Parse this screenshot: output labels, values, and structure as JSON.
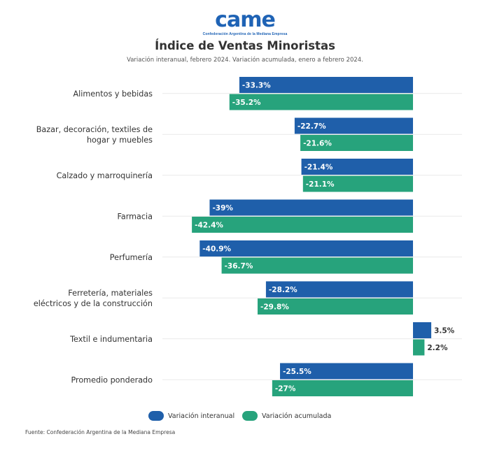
{
  "logo": {
    "text": "came",
    "tagline": "Confederación Argentina de la Mediana Empresa"
  },
  "header": {
    "title": "Índice de Ventas Minoristas",
    "subtitle": "Variación interanual, febrero 2024. Variación acumulada, enero a febrero 2024."
  },
  "colors": {
    "interanual": "#1f5faa",
    "acumulada": "#27a37c",
    "grid": "#e9e9e9",
    "label": "#333333"
  },
  "chart_data": {
    "type": "bar",
    "orientation": "horizontal",
    "title": "Índice de Ventas Minoristas",
    "subtitle": "Variación interanual, febrero 2024. Variación acumulada, enero a febrero 2024.",
    "categories": [
      [
        "Alimentos y bebidas"
      ],
      [
        "Bazar, decoración, textiles de",
        "hogar y muebles"
      ],
      [
        "Calzado y marroquinería"
      ],
      [
        "Farmacia"
      ],
      [
        "Perfumería"
      ],
      [
        "Ferretería, materiales",
        "eléctricos y de la construcción"
      ],
      [
        "Textil e indumentaria"
      ],
      [
        "Promedio ponderado"
      ]
    ],
    "series": [
      {
        "name": "Variación interanual",
        "values": [
          -33.3,
          -22.7,
          -21.4,
          -39,
          -40.9,
          -28.2,
          3.5,
          -25.5
        ],
        "labels": [
          "-33.3%",
          "-22.7%",
          "-21.4%",
          "-39%",
          "-40.9%",
          "-28.2%",
          "3.5%",
          "-25.5%"
        ]
      },
      {
        "name": "Variación acumulada",
        "values": [
          -35.2,
          -21.6,
          -21.1,
          -42.4,
          -36.7,
          -29.8,
          2.2,
          -27
        ],
        "labels": [
          "-35.2%",
          "-21.6%",
          "-21.1%",
          "-42.4%",
          "-36.7%",
          "-29.8%",
          "2.2%",
          "-27%"
        ]
      }
    ],
    "xlabel": "",
    "ylabel": "",
    "grid": true,
    "legend": "bottom"
  },
  "legend": {
    "interanual_label": "Variación interanual",
    "acumulada_label": "Variación acumulada"
  },
  "source": "Fuente: Confederación Argentina de la Mediana Empresa"
}
